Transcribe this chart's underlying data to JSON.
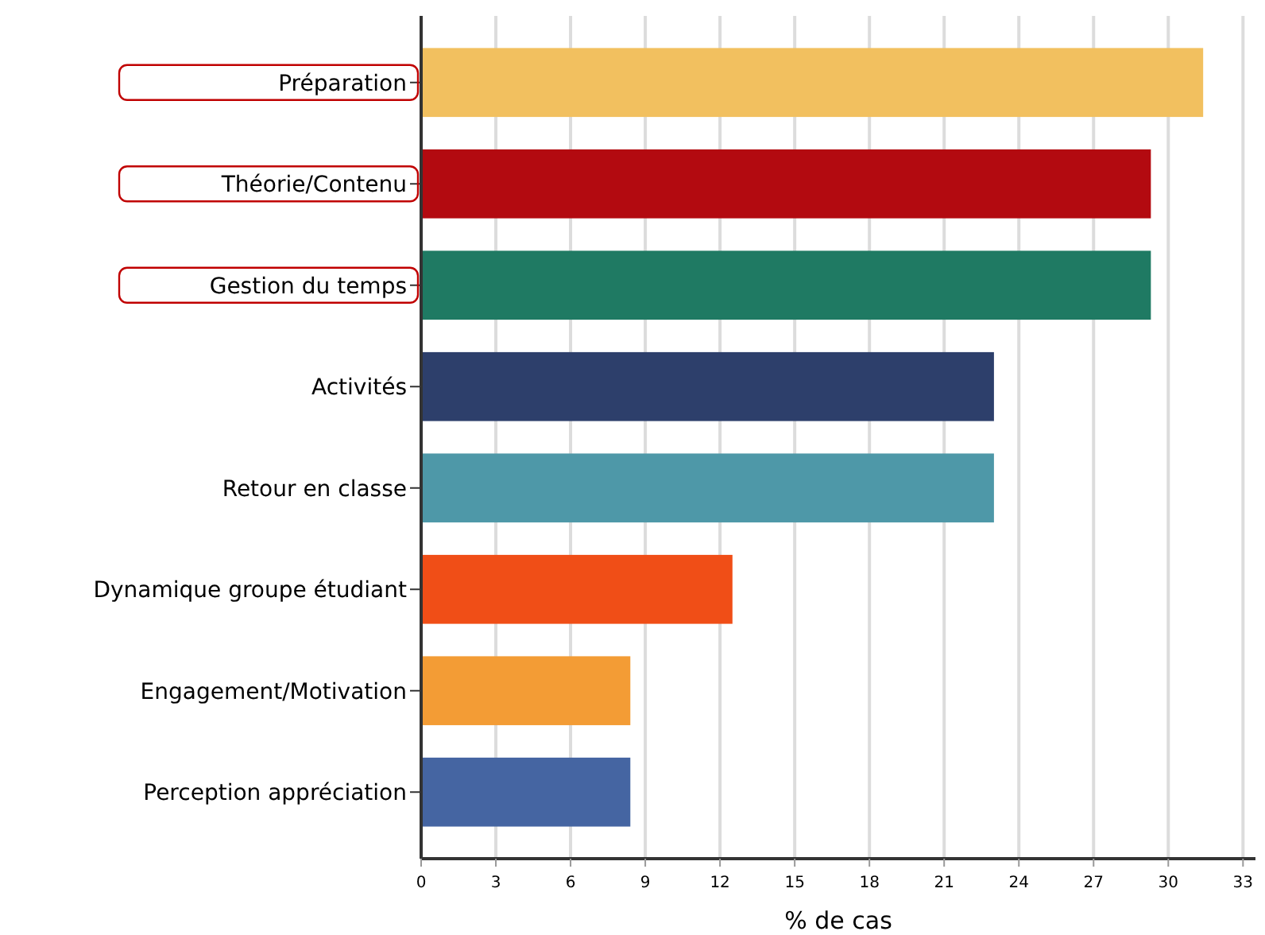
{
  "chart_data": {
    "type": "bar",
    "orientation": "horizontal",
    "xlabel": "% de cas",
    "categories": [
      "Préparation",
      "Théorie/Contenu",
      "Gestion du temps",
      "Activités",
      "Retour en classe",
      "Dynamique groupe étudiant",
      "Engagement/Motivation",
      "Perception appréciation"
    ],
    "values": [
      31.4,
      29.3,
      29.3,
      23.0,
      23.0,
      12.5,
      8.4,
      8.4
    ],
    "colors": [
      "#f2c05f",
      "#b30a10",
      "#1f7a63",
      "#2d3f6b",
      "#4e98a8",
      "#f04e17",
      "#f39c35",
      "#4565a2"
    ],
    "xlim": [
      0,
      33.5
    ],
    "xticks": [
      0,
      3,
      6,
      9,
      12,
      15,
      18,
      21,
      24,
      27,
      30,
      33
    ],
    "grid": "x"
  }
}
